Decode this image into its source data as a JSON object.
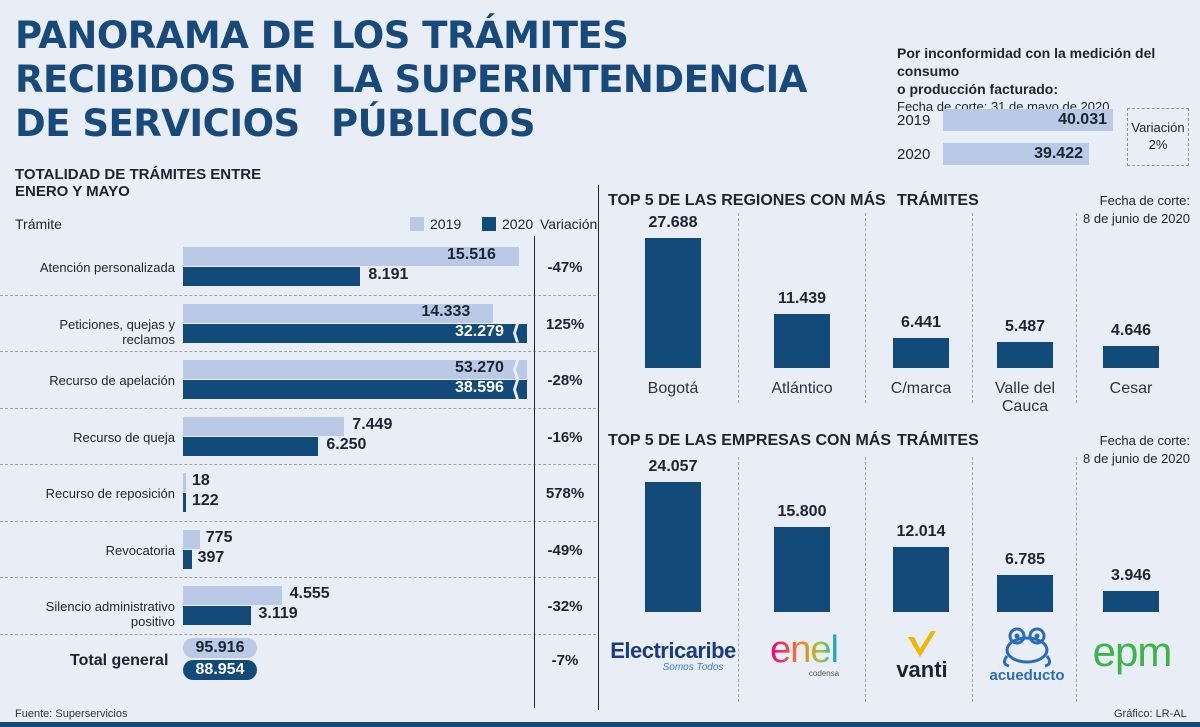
{
  "title": {
    "col1": [
      "PANORAMA DE",
      "RECIBIDOS EN",
      "DE SERVICIOS"
    ],
    "col2": [
      "LOS TRÁMITES",
      "LA SUPERINTENDENCIA",
      "PÚBLICOS"
    ]
  },
  "inconformidad": {
    "line1": "Por inconformidad con la medición del consumo",
    "line2": "o producción facturado:",
    "cut": "Fecha de corte: 31 de mayo de 2020",
    "rows": [
      {
        "year": "2019",
        "value": 40031,
        "label": "40.031"
      },
      {
        "year": "2020",
        "value": 39422,
        "label": "39.422"
      }
    ],
    "variation_label": "Variación",
    "variation_value": "2%"
  },
  "chart_data": [
    {
      "type": "bar",
      "title": "TOTALIDAD DE TRÁMITES ENTRE ENERO Y MAYO",
      "title_lines": [
        "TOTALIDAD DE TRÁMITES ENTRE",
        "ENERO Y MAYO"
      ],
      "category_header": "Trámite",
      "variation_header": "Variación",
      "series_names": [
        "2019",
        "2020"
      ],
      "categories": [
        {
          "name": "Atención personalizada",
          "v2019": 15516,
          "l2019": "15.516",
          "v2020": 8191,
          "l2020": "8.191",
          "variation": "-47%"
        },
        {
          "name": "Peticiones, quejas y reclamos",
          "v2019": 14333,
          "l2019": "14.333",
          "v2020": 32279,
          "l2020": "32.279",
          "variation": "125%"
        },
        {
          "name": "Recurso de apelación",
          "v2019": 53270,
          "l2019": "53.270",
          "v2020": 38596,
          "l2020": "38.596",
          "variation": "-28%"
        },
        {
          "name": "Recurso de queja",
          "v2019": 7449,
          "l2019": "7.449",
          "v2020": 6250,
          "l2020": "6.250",
          "variation": "-16%"
        },
        {
          "name": "Recurso de reposición",
          "v2019": 18,
          "l2019": "18",
          "v2020": 122,
          "l2020": "122",
          "variation": "578%"
        },
        {
          "name": "Revocatoria",
          "v2019": 775,
          "l2019": "775",
          "v2020": 397,
          "l2020": "397",
          "variation": "-49%"
        },
        {
          "name": "Silencio administrativo positivo",
          "v2019": 4555,
          "l2019": "4.555",
          "v2020": 3119,
          "l2020": "3.119",
          "variation": "-32%"
        }
      ],
      "total": {
        "label": "Total general",
        "l2019": "95.916",
        "l2020": "88.954",
        "variation": "-7%"
      }
    },
    {
      "type": "bar",
      "title_left": "TOP 5 DE LAS REGIONES CON MÁS",
      "title_right": "TRÁMITES",
      "cut_lines": [
        "Fecha de corte:",
        "8 de junio de 2020"
      ],
      "categories": [
        "Bogotá",
        "Atlántico",
        "C/marca",
        "Valle del Cauca",
        "Cesar"
      ],
      "category_lines": [
        [
          "Bogotá"
        ],
        [
          "Atlántico"
        ],
        [
          "C/marca"
        ],
        [
          "Valle del",
          "Cauca"
        ],
        [
          "Cesar"
        ]
      ],
      "values": [
        27688,
        11439,
        6441,
        5487,
        4646
      ],
      "labels": [
        "27.688",
        "11.439",
        "6.441",
        "5.487",
        "4.646"
      ]
    },
    {
      "type": "bar",
      "title_left": "TOP 5 DE LAS EMPRESAS CON MÁS",
      "title_right": "TRÁMITES",
      "cut_lines": [
        "Fecha de corte:",
        "8 de junio de 2020"
      ],
      "categories": [
        "Electricaribe",
        "Enel Codensa",
        "Vanti",
        "Acueducto",
        "EPM"
      ],
      "values": [
        24057,
        15800,
        12014,
        6785,
        3946
      ],
      "labels": [
        "24.057",
        "15.800",
        "12.014",
        "6.785",
        "3.946"
      ]
    }
  ],
  "logos": {
    "electricaribe": {
      "name": "Electricaribe",
      "tagline": "Somos Todos"
    },
    "enel": {
      "name": "enel",
      "sub": "codensa"
    },
    "vanti": {
      "name": "vanti"
    },
    "acueducto": {
      "name": "acueducto"
    },
    "epm": {
      "name": "epm"
    }
  },
  "colors": {
    "c2019": "#b9c9e6",
    "c2020": "#124b79",
    "title": "#17497b"
  },
  "footer": {
    "source": "Fuente: Superservicios",
    "credit": "Gráfico: LR-AL"
  }
}
